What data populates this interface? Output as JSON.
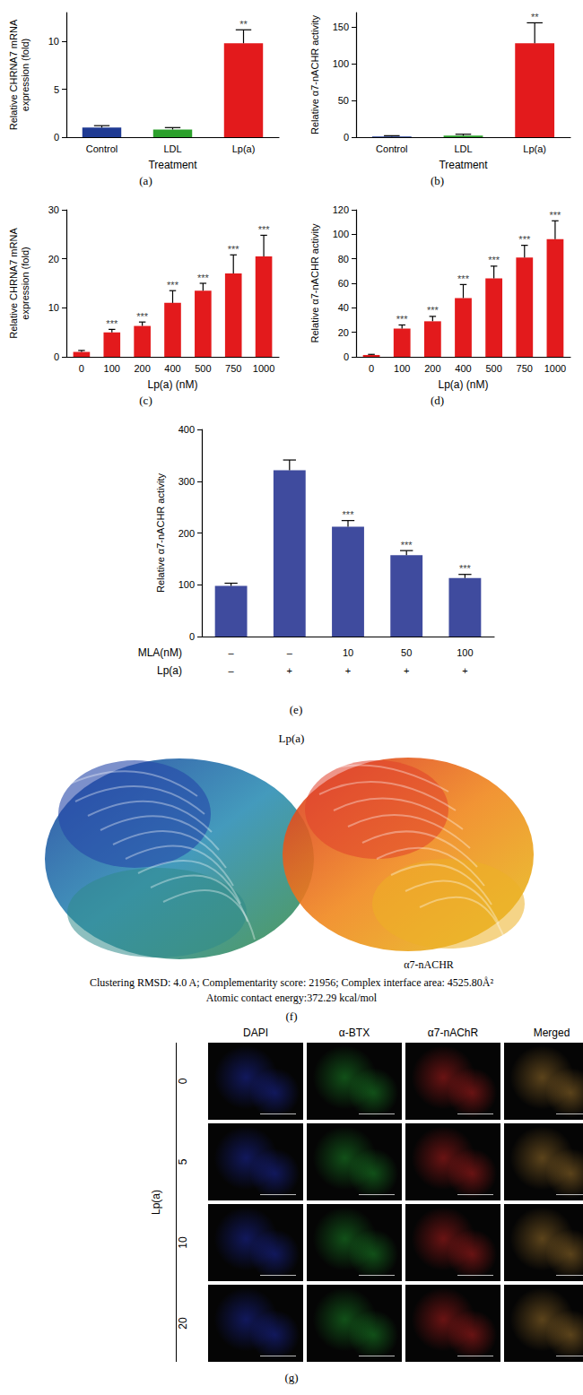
{
  "chart_data": [
    {
      "type": "bar",
      "caption": "(a)",
      "xlabel": "Treatment",
      "ylabel": "Relative CHRNA7 mRNA\nexpression (fold)",
      "categories": [
        "Control",
        "LDL",
        "Lp(a)"
      ],
      "values": [
        1.0,
        0.8,
        9.8
      ],
      "errors": [
        0.2,
        0.2,
        1.4
      ],
      "significance": [
        null,
        null,
        "**"
      ],
      "colors": [
        "#1f3a93",
        "#2ca02c",
        "#e31a1c"
      ],
      "ylim": [
        0,
        13
      ],
      "yticks": [
        0,
        5,
        10
      ],
      "grid": false
    },
    {
      "type": "bar",
      "caption": "(b)",
      "xlabel": "Treatment",
      "ylabel": "Relative α7-nACHR activity",
      "categories": [
        "Control",
        "LDL",
        "Lp(a)"
      ],
      "values": [
        1,
        2,
        128
      ],
      "errors": [
        1,
        2,
        28
      ],
      "significance": [
        null,
        null,
        "**"
      ],
      "colors": [
        "#1f3a93",
        "#2ca02c",
        "#e31a1c"
      ],
      "ylim": [
        0,
        170
      ],
      "yticks": [
        0,
        50,
        100,
        150
      ],
      "grid": false
    },
    {
      "type": "bar",
      "caption": "(c)",
      "xlabel": "Lp(a) (nM)",
      "ylabel": "Relative CHRNA7 mRNA\nexpression (fold)",
      "categories": [
        "0",
        "100",
        "200",
        "400",
        "500",
        "750",
        "1000"
      ],
      "values": [
        1.0,
        5.0,
        6.3,
        11.0,
        13.5,
        17.0,
        20.5
      ],
      "errors": [
        0.3,
        0.6,
        0.8,
        2.5,
        1.5,
        3.8,
        4.3
      ],
      "significance": [
        null,
        "***",
        "***",
        "***",
        "***",
        "***",
        "***"
      ],
      "color": "#e31a1c",
      "ylim": [
        0,
        30
      ],
      "yticks": [
        0,
        10,
        20,
        30
      ],
      "grid": false
    },
    {
      "type": "bar",
      "caption": "(d)",
      "xlabel": "Lp(a) (nM)",
      "ylabel": "Relative α7-nACHR activity",
      "categories": [
        "0",
        "100",
        "200",
        "400",
        "500",
        "750",
        "1000"
      ],
      "values": [
        1.5,
        23,
        29,
        48,
        64,
        81,
        96
      ],
      "errors": [
        0.5,
        3,
        4,
        11,
        10,
        10,
        15
      ],
      "significance": [
        null,
        "***",
        "***",
        "***",
        "***",
        "***",
        "***"
      ],
      "color": "#e31a1c",
      "ylim": [
        0,
        120
      ],
      "yticks": [
        0,
        20,
        40,
        60,
        80,
        100,
        120
      ],
      "grid": false
    },
    {
      "type": "bar",
      "caption": "(e)",
      "ylabel": "Relative α7-nACHR activity",
      "x_rows": [
        {
          "label": "MLA(nM)",
          "values": [
            "–",
            "–",
            "10",
            "50",
            "100"
          ]
        },
        {
          "label": "Lp(a)",
          "values": [
            "–",
            "+",
            "+",
            "+",
            "+"
          ]
        }
      ],
      "values": [
        98,
        321,
        212,
        157,
        113
      ],
      "errors": [
        5,
        20,
        12,
        9,
        7
      ],
      "significance": [
        null,
        null,
        "***",
        "***",
        "***"
      ],
      "color": "#3f4b9e",
      "ylim": [
        0,
        400
      ],
      "yticks": [
        0,
        100,
        200,
        300,
        400
      ],
      "grid": false
    }
  ],
  "docking": {
    "title": "Lp(a)",
    "receptor_label": "α7-nACHR",
    "caption_lines": [
      "Clustering RMSD: 4.0 A; Complementarity score: 21956; Complex interface area: 4525.80Å²",
      "Atomic contact energy:372.29 kcal/mol"
    ],
    "panel": "(f)"
  },
  "micrograph": {
    "columns": [
      "DAPI",
      "α-BTX",
      "α7-nAChR",
      "Merged"
    ],
    "rows": [
      "0",
      "5",
      "10",
      "20"
    ],
    "row_group_label": "Lp(a)",
    "panel": "(g)"
  }
}
